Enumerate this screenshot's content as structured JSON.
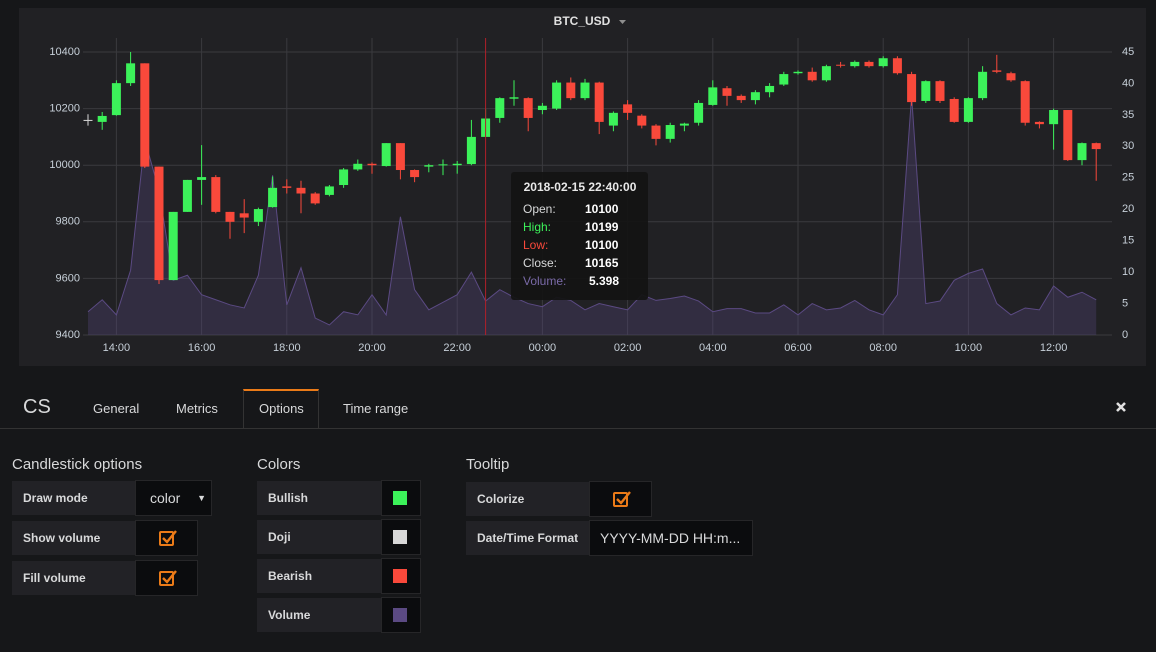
{
  "chart_data": {
    "type": "candlestick",
    "title": "BTC_USD",
    "categories": [
      null,
      null,
      "14:00",
      null,
      null,
      null,
      null,
      null,
      "16:00",
      null,
      null,
      null,
      null,
      null,
      "18:00",
      null,
      null,
      null,
      null,
      null,
      "20:00",
      null,
      null,
      null,
      null,
      null,
      "22:00",
      null,
      null,
      null,
      null,
      null,
      "00:00",
      null,
      null,
      null,
      null,
      null,
      "02:00",
      null,
      null,
      null,
      null,
      null,
      "04:00",
      null,
      null,
      null,
      null,
      null,
      "06:00",
      null,
      null,
      null,
      null,
      null,
      "08:00",
      null,
      null,
      null,
      null,
      null,
      "10:00",
      null,
      null,
      null,
      null,
      null,
      "12:00",
      null,
      null,
      null
    ],
    "open": [
      10160,
      10153,
      10177,
      10290,
      10360,
      9995,
      9594,
      9835,
      9948,
      9958,
      9835,
      9830,
      9800,
      9852,
      9925,
      9920,
      9900,
      9895,
      9930,
      9985,
      10005,
      9997,
      10078,
      9983,
      9995,
      10000,
      10000,
      10004,
      10100,
      10167,
      10235,
      10237,
      10195,
      10200,
      10292,
      10237,
      10292,
      10140,
      10215,
      10175,
      10140,
      10093,
      10140,
      10150,
      10213,
      10272,
      10245,
      10230,
      10258,
      10285,
      10325,
      10330,
      10300,
      10355,
      10350,
      10365,
      10350,
      10378,
      10322,
      10227,
      10297,
      10234,
      10153,
      10237,
      10335,
      10325,
      10297,
      10153,
      10145,
      10195,
      10018,
      10078
    ],
    "high": [
      10180,
      10188,
      10300,
      10400,
      10360,
      9995,
      9835,
      9948,
      10071,
      9965,
      9835,
      9880,
      9850,
      9960,
      9950,
      9945,
      9905,
      9930,
      9990,
      10020,
      10010,
      10078,
      10078,
      9985,
      10005,
      10020,
      10015,
      10160,
      10199,
      10240,
      10300,
      10240,
      10220,
      10300,
      10310,
      10305,
      10295,
      10190,
      10230,
      10180,
      10145,
      10150,
      10150,
      10230,
      10300,
      10280,
      10250,
      10265,
      10290,
      10330,
      10335,
      10345,
      10355,
      10365,
      10370,
      10370,
      10385,
      10385,
      10330,
      10300,
      10300,
      10240,
      10240,
      10350,
      10390,
      10330,
      10300,
      10155,
      10200,
      10195,
      10080,
      10080
    ],
    "low": [
      10140,
      10125,
      10175,
      10280,
      9990,
      9580,
      9594,
      9835,
      9860,
      9830,
      9740,
      9760,
      9785,
      9850,
      9900,
      9830,
      9860,
      9890,
      9920,
      9980,
      9970,
      9995,
      9950,
      9940,
      9975,
      9965,
      9970,
      10000,
      10100,
      10150,
      10210,
      10120,
      10180,
      10195,
      10230,
      10230,
      10110,
      10120,
      10160,
      10130,
      10070,
      10080,
      10120,
      10140,
      10210,
      10210,
      10220,
      10215,
      10240,
      10280,
      10320,
      10295,
      10295,
      10345,
      10345,
      10345,
      10345,
      10320,
      10210,
      10220,
      10220,
      10150,
      10150,
      10230,
      10325,
      10295,
      10140,
      10130,
      10055,
      10015,
      10000,
      9945
    ],
    "close": [
      10160,
      10174,
      10290,
      10360,
      9995,
      9594,
      9835,
      9948,
      9958,
      9835,
      9800,
      9815,
      9845,
      9920,
      9920,
      9900,
      9865,
      9925,
      9985,
      10005,
      10000,
      10078,
      9983,
      9958,
      10000,
      10003,
      10005,
      10100,
      10165,
      10237,
      10240,
      10167,
      10210,
      10292,
      10237,
      10292,
      10153,
      10185,
      10185,
      10140,
      10093,
      10142,
      10147,
      10220,
      10275,
      10245,
      10230,
      10258,
      10280,
      10322,
      10330,
      10300,
      10350,
      10353,
      10365,
      10350,
      10378,
      10325,
      10223,
      10297,
      10227,
      10153,
      10237,
      10330,
      10330,
      10300,
      10150,
      10145,
      10195,
      10018,
      10078,
      10057
    ],
    "volume": [
      3.7,
      5.6,
      3.2,
      10.3,
      31,
      23,
      8.7,
      9.5,
      6.4,
      5.6,
      4.8,
      4.3,
      9.5,
      25.4,
      4.8,
      10.7,
      2.7,
      1.6,
      3.7,
      3.2,
      6.4,
      3.2,
      18.8,
      7.2,
      4,
      5.2,
      6.4,
      10,
      5.398,
      7.2,
      6,
      5,
      4.5,
      6,
      5.5,
      4,
      5,
      4.5,
      4,
      6.4,
      5.5,
      5.8,
      6.2,
      5.4,
      3.7,
      4.2,
      4.2,
      3.5,
      3.5,
      4.8,
      3.2,
      5,
      4,
      4.3,
      5.5,
      4,
      3.2,
      6.4,
      38,
      5,
      5.4,
      8.7,
      9.8,
      10.5,
      5,
      3.2,
      4.3,
      4,
      7.8,
      6,
      6.8,
      5.6
    ],
    "ylim": [
      9400,
      10400
    ],
    "yticks": [
      9400,
      9600,
      9800,
      10000,
      10200,
      10400
    ],
    "y2lim": [
      0,
      45
    ],
    "y2ticks": [
      0,
      5,
      10,
      15,
      20,
      25,
      30,
      35,
      40,
      45
    ],
    "grid": true,
    "draw_mode": "color",
    "show_volume": true,
    "fill_volume": true,
    "tooltip_colorize": true,
    "colors": {
      "bullish": "#3cf25a",
      "doji": "#d8d8d8",
      "bearish": "#f9493b",
      "volume": "#5b4a83"
    },
    "tooltip": {
      "date": "2018-02-15 22:40:00",
      "open": "Open:",
      "high": "High:",
      "low": "Low:",
      "close": "Close:",
      "volume": "Volume:"
    }
  },
  "editor": {
    "name": "CS",
    "tabs": [
      "General",
      "Metrics",
      "Options",
      "Time range"
    ],
    "candlestick": {
      "title": "Candlestick options",
      "draw_mode": "Draw mode",
      "show_volume": "Show volume",
      "fill_volume": "Fill volume"
    },
    "colors": {
      "title": "Colors",
      "bullish": "Bullish",
      "doji": "Doji",
      "bearish": "Bearish",
      "volume": "Volume"
    },
    "tooltip": {
      "title": "Tooltip",
      "colorize": "Colorize",
      "format_label": "Date/Time Format",
      "format": "YYYY-MM-DD HH:m..."
    }
  }
}
